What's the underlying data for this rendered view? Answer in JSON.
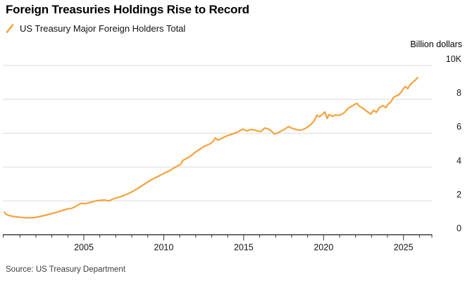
{
  "header": {
    "title": "Foreign Treasuries Holdings Rise to Record"
  },
  "legend": {
    "label": "US Treasury Major Foreign Holders Total"
  },
  "footer": {
    "source": "Source: US Treasury Department"
  },
  "colors": {
    "line": "#F6A23C",
    "grid": "#D9D9D9",
    "axis": "#1A1A1A",
    "tick": "#333333",
    "text": "#141414",
    "source_text": "#3D3D3D"
  },
  "chart_data": {
    "type": "line",
    "title": "Foreign Treasuries Holdings Rise to Record",
    "unit_label": "Billion dollars",
    "ylabel": "Billion dollars",
    "xlabel": "",
    "grid": true,
    "legend_position": "top-left",
    "ylim": [
      0,
      10000
    ],
    "xlim": [
      2000,
      2026.8
    ],
    "yticks": [
      {
        "value": 0,
        "label": "0"
      },
      {
        "value": 2000,
        "label": "2"
      },
      {
        "value": 4000,
        "label": "4"
      },
      {
        "value": 6000,
        "label": "6"
      },
      {
        "value": 8000,
        "label": "8"
      },
      {
        "value": 10000,
        "label": "10K"
      }
    ],
    "xticks_labeled": [
      2005,
      2010,
      2015,
      2020,
      2025
    ],
    "xticks_minor": [
      2001,
      2002,
      2003,
      2004,
      2005,
      2006,
      2007,
      2008,
      2009,
      2010,
      2011,
      2012,
      2013,
      2014,
      2015,
      2016,
      2017,
      2018,
      2019,
      2020,
      2021,
      2022,
      2023,
      2024,
      2025,
      2026
    ],
    "series": [
      {
        "name": "US Treasury Major Foreign Holders Total",
        "points": [
          [
            2000.04,
            1330
          ],
          [
            2000.12,
            1215
          ],
          [
            2000.3,
            1140
          ],
          [
            2000.55,
            1090
          ],
          [
            2000.8,
            1055
          ],
          [
            2001.05,
            1030
          ],
          [
            2001.35,
            1005
          ],
          [
            2001.65,
            1000
          ],
          [
            2001.95,
            1025
          ],
          [
            2002.25,
            1080
          ],
          [
            2002.55,
            1145
          ],
          [
            2002.85,
            1215
          ],
          [
            2003.15,
            1295
          ],
          [
            2003.45,
            1370
          ],
          [
            2003.7,
            1450
          ],
          [
            2003.95,
            1520
          ],
          [
            2004.2,
            1550
          ],
          [
            2004.45,
            1655
          ],
          [
            2004.7,
            1800
          ],
          [
            2004.85,
            1860
          ],
          [
            2005.05,
            1825
          ],
          [
            2005.3,
            1885
          ],
          [
            2005.55,
            1950
          ],
          [
            2005.8,
            2015
          ],
          [
            2006.05,
            2035
          ],
          [
            2006.3,
            2055
          ],
          [
            2006.55,
            2000
          ],
          [
            2006.8,
            2100
          ],
          [
            2007.05,
            2180
          ],
          [
            2007.3,
            2250
          ],
          [
            2007.55,
            2335
          ],
          [
            2007.8,
            2440
          ],
          [
            2008.05,
            2560
          ],
          [
            2008.3,
            2700
          ],
          [
            2008.55,
            2845
          ],
          [
            2008.8,
            3000
          ],
          [
            2009.05,
            3150
          ],
          [
            2009.3,
            3285
          ],
          [
            2009.55,
            3405
          ],
          [
            2009.8,
            3525
          ],
          [
            2010.05,
            3645
          ],
          [
            2010.3,
            3750
          ],
          [
            2010.55,
            3895
          ],
          [
            2010.8,
            4035
          ],
          [
            2011.05,
            4160
          ],
          [
            2011.2,
            4390
          ],
          [
            2011.45,
            4520
          ],
          [
            2011.7,
            4665
          ],
          [
            2011.95,
            4855
          ],
          [
            2012.2,
            5020
          ],
          [
            2012.5,
            5200
          ],
          [
            2012.8,
            5330
          ],
          [
            2012.95,
            5400
          ],
          [
            2013.1,
            5520
          ],
          [
            2013.22,
            5730
          ],
          [
            2013.38,
            5590
          ],
          [
            2013.6,
            5690
          ],
          [
            2013.85,
            5800
          ],
          [
            2014.1,
            5890
          ],
          [
            2014.35,
            5975
          ],
          [
            2014.6,
            6060
          ],
          [
            2014.8,
            6160
          ],
          [
            2014.95,
            6245
          ],
          [
            2015.2,
            6130
          ],
          [
            2015.45,
            6225
          ],
          [
            2015.65,
            6190
          ],
          [
            2015.9,
            6120
          ],
          [
            2016.1,
            6110
          ],
          [
            2016.3,
            6300
          ],
          [
            2016.5,
            6265
          ],
          [
            2016.7,
            6160
          ],
          [
            2016.92,
            5945
          ],
          [
            2017.1,
            6005
          ],
          [
            2017.35,
            6125
          ],
          [
            2017.6,
            6255
          ],
          [
            2017.8,
            6385
          ],
          [
            2018.05,
            6280
          ],
          [
            2018.3,
            6210
          ],
          [
            2018.55,
            6175
          ],
          [
            2018.8,
            6255
          ],
          [
            2019.0,
            6360
          ],
          [
            2019.2,
            6510
          ],
          [
            2019.4,
            6710
          ],
          [
            2019.58,
            7060
          ],
          [
            2019.74,
            6975
          ],
          [
            2019.95,
            7130
          ],
          [
            2020.08,
            7250
          ],
          [
            2020.22,
            6870
          ],
          [
            2020.35,
            7105
          ],
          [
            2020.55,
            7000
          ],
          [
            2020.75,
            7075
          ],
          [
            2020.95,
            7050
          ],
          [
            2021.15,
            7125
          ],
          [
            2021.35,
            7255
          ],
          [
            2021.55,
            7485
          ],
          [
            2021.75,
            7590
          ],
          [
            2021.95,
            7705
          ],
          [
            2022.08,
            7760
          ],
          [
            2022.25,
            7585
          ],
          [
            2022.45,
            7485
          ],
          [
            2022.65,
            7325
          ],
          [
            2022.83,
            7205
          ],
          [
            2022.97,
            7125
          ],
          [
            2023.12,
            7360
          ],
          [
            2023.3,
            7230
          ],
          [
            2023.5,
            7525
          ],
          [
            2023.72,
            7630
          ],
          [
            2023.9,
            7510
          ],
          [
            2024.05,
            7720
          ],
          [
            2024.22,
            7855
          ],
          [
            2024.38,
            8115
          ],
          [
            2024.55,
            8205
          ],
          [
            2024.7,
            8260
          ],
          [
            2024.88,
            8460
          ],
          [
            2025.02,
            8660
          ],
          [
            2025.12,
            8755
          ],
          [
            2025.27,
            8630
          ],
          [
            2025.42,
            8860
          ],
          [
            2025.55,
            8990
          ],
          [
            2025.68,
            9090
          ],
          [
            2025.78,
            9170
          ],
          [
            2025.88,
            9290
          ]
        ]
      }
    ]
  }
}
